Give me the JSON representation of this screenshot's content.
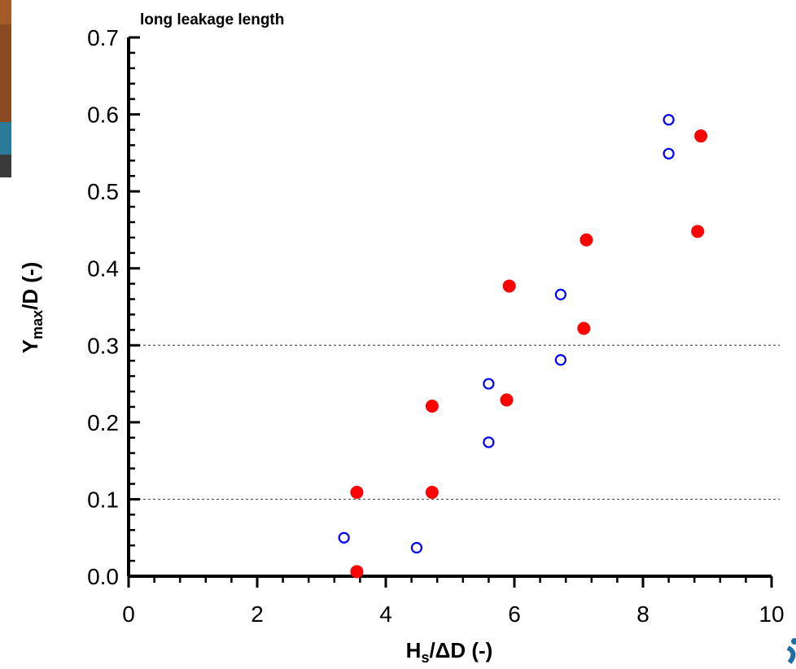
{
  "chart_data": {
    "type": "scatter",
    "title": "long leakage length",
    "xlabel": {
      "main": "H",
      "sub": "s",
      "rest": "/ΔD (-)"
    },
    "ylabel": {
      "main": "Y",
      "sub": "max",
      "rest": "/D (-)"
    },
    "xlim": [
      0,
      10
    ],
    "ylim": [
      0,
      0.7
    ],
    "xticks": [
      "0",
      "2",
      "4",
      "6",
      "8",
      "10"
    ],
    "yticks": [
      "0.0",
      "0.1",
      "0.2",
      "0.3",
      "0.4",
      "0.5",
      "0.6",
      "0.7"
    ],
    "grid": "dotted horizontal lines at 0.1 and 0.3",
    "reference_lines_y": [
      0.1,
      0.3
    ],
    "series": [
      {
        "marker": "filled-circle",
        "color": "#ff0000",
        "points": [
          [
            3.55,
            0.006
          ],
          [
            3.55,
            0.109
          ],
          [
            4.72,
            0.109
          ],
          [
            4.72,
            0.221
          ],
          [
            5.88,
            0.229
          ],
          [
            5.92,
            0.377
          ],
          [
            7.08,
            0.322
          ],
          [
            7.12,
            0.437
          ],
          [
            8.85,
            0.448
          ],
          [
            8.9,
            0.572
          ]
        ]
      },
      {
        "marker": "open-circle",
        "color": "#0000ff",
        "points": [
          [
            3.35,
            0.05
          ],
          [
            4.48,
            0.037
          ],
          [
            5.6,
            0.174
          ],
          [
            5.6,
            0.25
          ],
          [
            6.72,
            0.281
          ],
          [
            6.72,
            0.366
          ],
          [
            8.4,
            0.549
          ],
          [
            8.4,
            0.593
          ]
        ]
      }
    ]
  }
}
